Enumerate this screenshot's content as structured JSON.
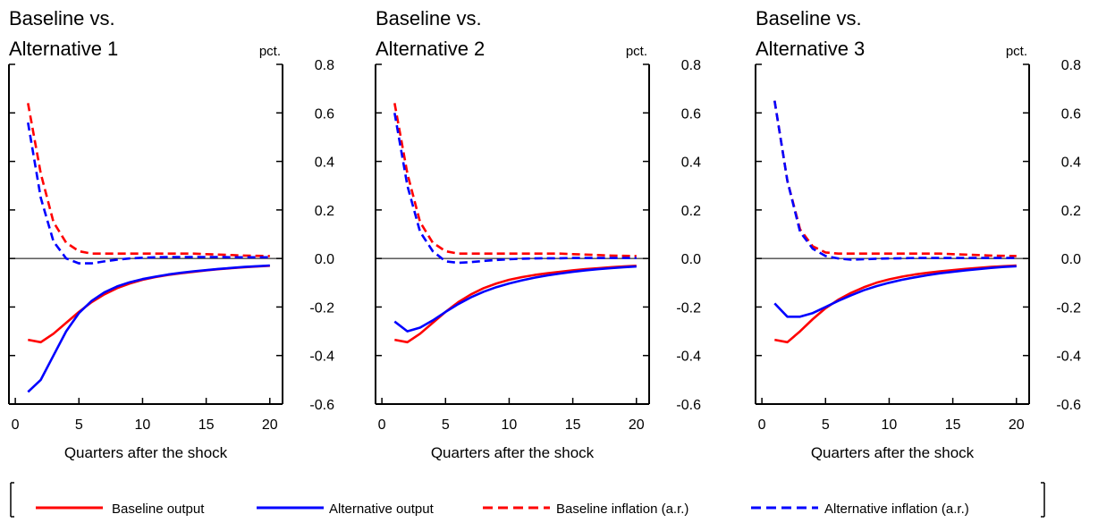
{
  "legend": [
    {
      "label": "Baseline output",
      "color": "#ff0000",
      "dashed": false
    },
    {
      "label": "Alternative output",
      "color": "#0000ff",
      "dashed": false
    },
    {
      "label": "Baseline inflation (a.r.)",
      "color": "#ff0000",
      "dashed": true
    },
    {
      "label": "Alternative inflation (a.r.)",
      "color": "#0000ff",
      "dashed": true
    }
  ],
  "chart_data": [
    {
      "type": "line",
      "title_line1": "Baseline vs.",
      "title_line2": "Alternative 1",
      "unit": "pct.",
      "xlabel": "Quarters after the shock",
      "x_ticks": [
        "0",
        "5",
        "10",
        "15",
        "20"
      ],
      "y_ticks": [
        "0.8",
        "0.6",
        "0.4",
        "0.2",
        "0.0",
        "-0.2",
        "-0.4",
        "-0.6"
      ],
      "xlim": [
        -0.5,
        21
      ],
      "ylim": [
        -0.6,
        0.8
      ],
      "x": [
        1,
        2,
        3,
        4,
        5,
        6,
        7,
        8,
        9,
        10,
        11,
        12,
        13,
        14,
        15,
        16,
        17,
        18,
        19,
        20
      ],
      "series": [
        {
          "name": "Baseline output",
          "color": "#ff0000",
          "dashed": false,
          "values": [
            -0.335,
            -0.345,
            -0.31,
            -0.265,
            -0.22,
            -0.18,
            -0.148,
            -0.122,
            -0.103,
            -0.088,
            -0.077,
            -0.068,
            -0.061,
            -0.055,
            -0.049,
            -0.044,
            -0.04,
            -0.036,
            -0.033,
            -0.03
          ]
        },
        {
          "name": "Alternative output",
          "color": "#0000ff",
          "dashed": false,
          "values": [
            -0.55,
            -0.5,
            -0.4,
            -0.3,
            -0.225,
            -0.175,
            -0.14,
            -0.115,
            -0.098,
            -0.085,
            -0.075,
            -0.066,
            -0.059,
            -0.053,
            -0.048,
            -0.043,
            -0.039,
            -0.035,
            -0.032,
            -0.029
          ]
        },
        {
          "name": "Baseline inflation (a.r.)",
          "color": "#ff0000",
          "dashed": true,
          "values": [
            0.64,
            0.35,
            0.15,
            0.065,
            0.03,
            0.02,
            0.02,
            0.02,
            0.02,
            0.02,
            0.02,
            0.02,
            0.02,
            0.02,
            0.018,
            0.016,
            0.014,
            0.012,
            0.011,
            0.01
          ]
        },
        {
          "name": "Alternative inflation (a.r.)",
          "color": "#0000ff",
          "dashed": true,
          "values": [
            0.56,
            0.25,
            0.07,
            0.0,
            -0.02,
            -0.02,
            -0.012,
            -0.005,
            0.0,
            0.003,
            0.005,
            0.006,
            0.006,
            0.006,
            0.006,
            0.006,
            0.005,
            0.005,
            0.005,
            0.005
          ]
        }
      ]
    },
    {
      "type": "line",
      "title_line1": "Baseline vs.",
      "title_line2": "Alternative 2",
      "unit": "pct.",
      "xlabel": "Quarters after the shock",
      "x_ticks": [
        "0",
        "5",
        "10",
        "15",
        "20"
      ],
      "y_ticks": [
        "0.8",
        "0.6",
        "0.4",
        "0.2",
        "0.0",
        "-0.2",
        "-0.4",
        "-0.6"
      ],
      "xlim": [
        -0.5,
        21
      ],
      "ylim": [
        -0.6,
        0.8
      ],
      "x": [
        1,
        2,
        3,
        4,
        5,
        6,
        7,
        8,
        9,
        10,
        11,
        12,
        13,
        14,
        15,
        16,
        17,
        18,
        19,
        20
      ],
      "series": [
        {
          "name": "Baseline output",
          "color": "#ff0000",
          "dashed": false,
          "values": [
            -0.335,
            -0.345,
            -0.31,
            -0.265,
            -0.22,
            -0.18,
            -0.148,
            -0.122,
            -0.103,
            -0.088,
            -0.077,
            -0.068,
            -0.061,
            -0.055,
            -0.049,
            -0.044,
            -0.04,
            -0.036,
            -0.033,
            -0.03
          ]
        },
        {
          "name": "Alternative output",
          "color": "#0000ff",
          "dashed": false,
          "values": [
            -0.26,
            -0.3,
            -0.285,
            -0.255,
            -0.22,
            -0.188,
            -0.16,
            -0.137,
            -0.118,
            -0.103,
            -0.09,
            -0.079,
            -0.07,
            -0.062,
            -0.055,
            -0.049,
            -0.044,
            -0.04,
            -0.036,
            -0.033
          ]
        },
        {
          "name": "Baseline inflation (a.r.)",
          "color": "#ff0000",
          "dashed": true,
          "values": [
            0.64,
            0.35,
            0.15,
            0.065,
            0.03,
            0.02,
            0.02,
            0.02,
            0.02,
            0.02,
            0.02,
            0.02,
            0.02,
            0.02,
            0.018,
            0.016,
            0.014,
            0.012,
            0.011,
            0.01
          ]
        },
        {
          "name": "Alternative inflation (a.r.)",
          "color": "#0000ff",
          "dashed": true,
          "values": [
            0.6,
            0.3,
            0.11,
            0.03,
            -0.012,
            -0.018,
            -0.015,
            -0.01,
            -0.006,
            -0.003,
            -0.001,
            0.0,
            0.001,
            0.001,
            0.002,
            0.002,
            0.002,
            0.002,
            0.002,
            0.002
          ]
        }
      ]
    },
    {
      "type": "line",
      "title_line1": "Baseline vs.",
      "title_line2": "Alternative 3",
      "unit": "pct.",
      "xlabel": "Quarters after the shock",
      "x_ticks": [
        "0",
        "5",
        "10",
        "15",
        "20"
      ],
      "y_ticks": [
        "0.8",
        "0.6",
        "0.4",
        "0.2",
        "0.0",
        "-0.2",
        "-0.4",
        "-0.6"
      ],
      "xlim": [
        -0.5,
        21
      ],
      "ylim": [
        -0.6,
        0.8
      ],
      "x": [
        1,
        2,
        3,
        4,
        5,
        6,
        7,
        8,
        9,
        10,
        11,
        12,
        13,
        14,
        15,
        16,
        17,
        18,
        19,
        20
      ],
      "series": [
        {
          "name": "Baseline output",
          "color": "#ff0000",
          "dashed": false,
          "values": [
            -0.335,
            -0.345,
            -0.3,
            -0.25,
            -0.205,
            -0.17,
            -0.142,
            -0.119,
            -0.1,
            -0.086,
            -0.075,
            -0.066,
            -0.059,
            -0.053,
            -0.048,
            -0.043,
            -0.039,
            -0.035,
            -0.032,
            -0.029
          ]
        },
        {
          "name": "Alternative output",
          "color": "#0000ff",
          "dashed": false,
          "values": [
            -0.185,
            -0.24,
            -0.24,
            -0.225,
            -0.2,
            -0.175,
            -0.152,
            -0.131,
            -0.114,
            -0.1,
            -0.088,
            -0.078,
            -0.069,
            -0.061,
            -0.055,
            -0.049,
            -0.044,
            -0.039,
            -0.035,
            -0.032
          ]
        },
        {
          "name": "Baseline inflation (a.r.)",
          "color": "#ff0000",
          "dashed": true,
          "values": [
            0.65,
            0.32,
            0.12,
            0.05,
            0.025,
            0.02,
            0.02,
            0.02,
            0.02,
            0.02,
            0.02,
            0.02,
            0.02,
            0.02,
            0.018,
            0.016,
            0.014,
            0.012,
            0.011,
            0.01
          ]
        },
        {
          "name": "Alternative inflation (a.r.)",
          "color": "#0000ff",
          "dashed": true,
          "values": [
            0.65,
            0.32,
            0.11,
            0.04,
            0.01,
            0.0,
            -0.005,
            -0.003,
            -0.001,
            0.0,
            0.001,
            0.002,
            0.002,
            0.002,
            0.002,
            0.002,
            0.002,
            0.002,
            0.002,
            0.002
          ]
        }
      ]
    }
  ]
}
